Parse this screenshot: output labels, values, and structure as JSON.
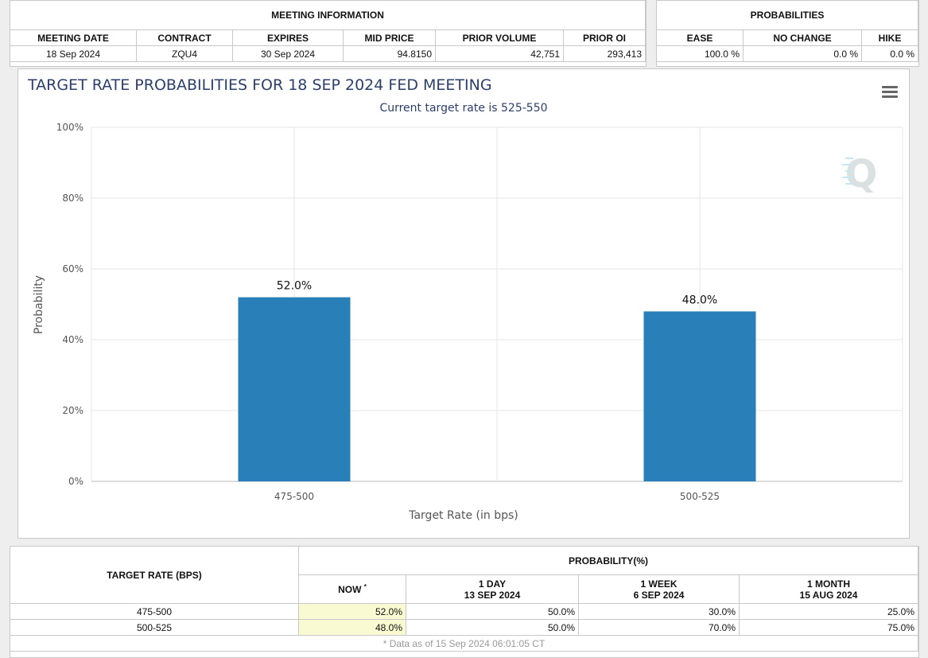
{
  "meeting_info": {
    "title": "MEETING INFORMATION",
    "headers": [
      "MEETING DATE",
      "CONTRACT",
      "EXPIRES",
      "MID PRICE",
      "PRIOR VOLUME",
      "PRIOR OI"
    ],
    "row": [
      "18 Sep 2024",
      "ZQU4",
      "30 Sep 2024",
      "94.8150",
      "42,751",
      "293,413"
    ]
  },
  "probabilities": {
    "title": "PROBABILITIES",
    "headers": [
      "EASE",
      "NO CHANGE",
      "HIKE"
    ],
    "row": [
      "100.0 %",
      "0.0 %",
      "0.0 %"
    ]
  },
  "chart_data": {
    "type": "bar",
    "title": "TARGET RATE PROBABILITIES FOR 18 SEP 2024 FED MEETING",
    "subtitle": "Current target rate is 525-550",
    "xlabel": "Target Rate (in bps)",
    "ylabel": "Probability",
    "categories": [
      "475-500",
      "500-525"
    ],
    "values": [
      52.0,
      48.0
    ],
    "data_labels": [
      "52.0%",
      "48.0%"
    ],
    "ylim": [
      0,
      100
    ],
    "yticks": [
      "0%",
      "20%",
      "40%",
      "60%",
      "80%",
      "100%"
    ],
    "bar_color": "#2980b9",
    "grid": true
  },
  "bottom_table": {
    "target_rate_header": "TARGET RATE (BPS)",
    "probability_header": "PROBABILITY(%)",
    "now_label": "NOW",
    "now_mark": "*",
    "col_headers": [
      {
        "line1": "1 DAY",
        "line2": "13 SEP 2024"
      },
      {
        "line1": "1 WEEK",
        "line2": "6 SEP 2024"
      },
      {
        "line1": "1 MONTH",
        "line2": "15 AUG 2024"
      }
    ],
    "rows": [
      {
        "rate": "475-500",
        "now": "52.0%",
        "day": "50.0%",
        "week": "30.0%",
        "month": "25.0%"
      },
      {
        "rate": "500-525",
        "now": "48.0%",
        "day": "50.0%",
        "week": "70.0%",
        "month": "75.0%"
      }
    ],
    "footnote": "* Data as of 15 Sep 2024 06:01:05 CT"
  }
}
